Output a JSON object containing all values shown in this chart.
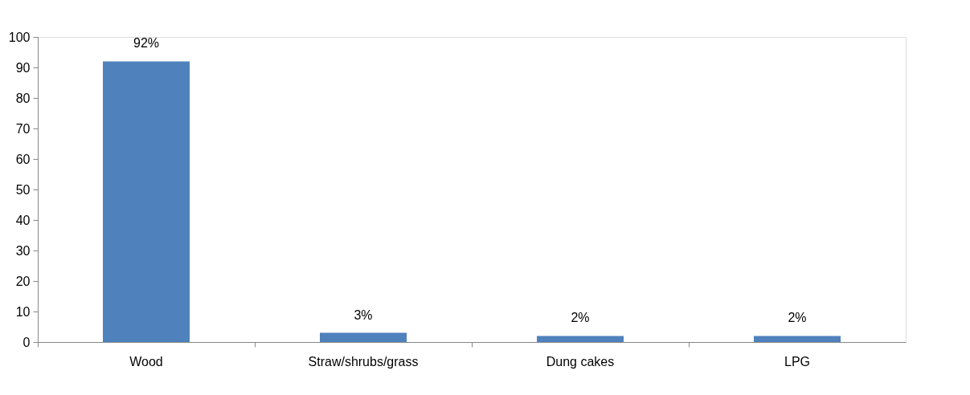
{
  "chart_data": {
    "type": "bar",
    "categories": [
      "Wood",
      "Straw/shrubs/grass",
      "Dung cakes",
      "LPG"
    ],
    "values": [
      92,
      3,
      2,
      2
    ],
    "value_labels": [
      "92%",
      "3%",
      "2%",
      "2%"
    ],
    "color": "#4f81bd",
    "ylim": [
      0,
      100
    ],
    "yticks": [
      0,
      10,
      20,
      30,
      40,
      50,
      60,
      70,
      80,
      90,
      100
    ],
    "grid": false
  }
}
